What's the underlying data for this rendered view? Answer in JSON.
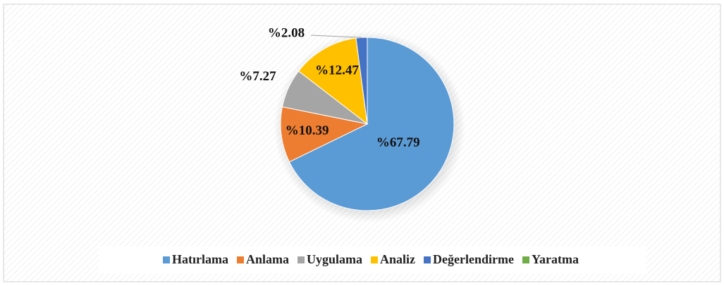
{
  "chart_data": {
    "type": "pie",
    "categories": [
      "Hatırlama",
      "Anlama",
      "Uygulama",
      "Analiz",
      "Değerlendirme",
      "Yaratma"
    ],
    "values": [
      67.79,
      10.39,
      7.27,
      12.47,
      2.08,
      0
    ],
    "value_labels": [
      "%67.79",
      "%10.39",
      "%7.27",
      "%12.47",
      "%2.08",
      null
    ],
    "colors": [
      "#5b9bd5",
      "#ed7d31",
      "#a5a5a5",
      "#ffc000",
      "#4472c4",
      "#70ad47"
    ],
    "legend": "bottom"
  }
}
